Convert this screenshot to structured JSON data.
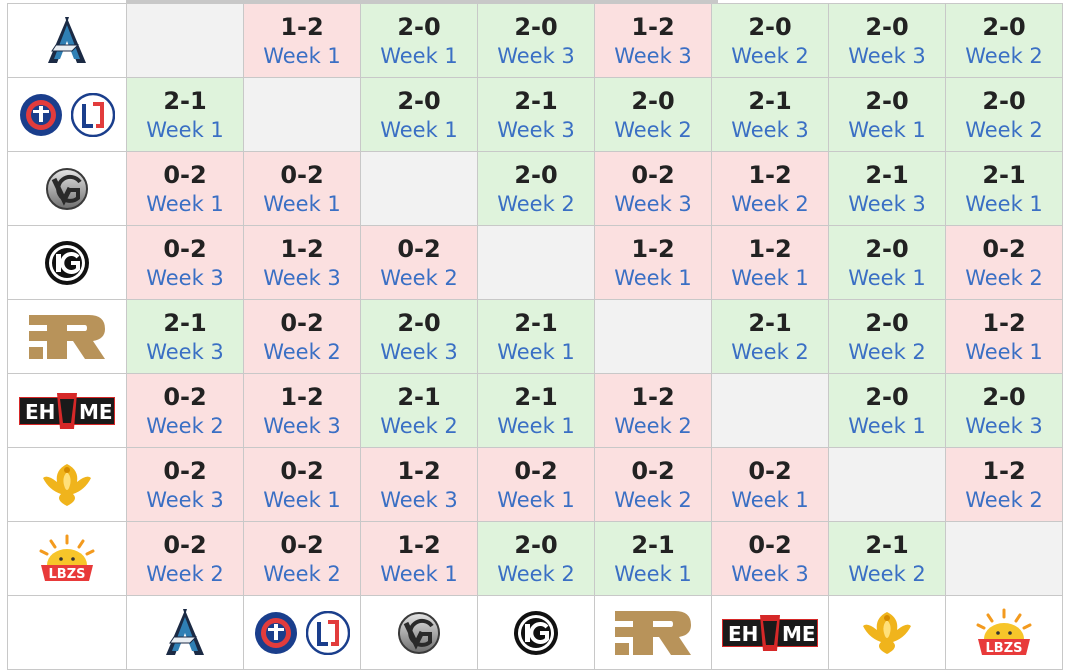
{
  "colors": {
    "win_bg": "#dff3dc",
    "loss_bg": "#fbe0e0",
    "self_bg": "#f2f2f2",
    "week_link": "#3a6fc4",
    "border": "#c8c8c8"
  },
  "teams": [
    {
      "id": "alliance",
      "logo_icon": "alliance-logo-icon"
    },
    {
      "id": "psg-lgd",
      "logo_icon": "psg-lgd-logo-icon"
    },
    {
      "id": "vici-gaming",
      "logo_icon": "vici-gaming-logo-icon"
    },
    {
      "id": "invictus-gaming",
      "logo_icon": "invictus-gaming-logo-icon"
    },
    {
      "id": "royal-never-give-up",
      "logo_icon": "rng-logo-icon"
    },
    {
      "id": "ehome",
      "logo_icon": "ehome-logo-icon"
    },
    {
      "id": "phoenix",
      "logo_icon": "phoenix-logo-icon"
    },
    {
      "id": "lbzs",
      "logo_icon": "lbzs-logo-icon"
    }
  ],
  "rows": [
    {
      "cells": [
        null,
        {
          "score": "1-2",
          "week": "Week 1"
        },
        {
          "score": "2-0",
          "week": "Week 1"
        },
        {
          "score": "2-0",
          "week": "Week 3"
        },
        {
          "score": "1-2",
          "week": "Week 3"
        },
        {
          "score": "2-0",
          "week": "Week 2"
        },
        {
          "score": "2-0",
          "week": "Week 3"
        },
        {
          "score": "2-0",
          "week": "Week 2"
        }
      ]
    },
    {
      "cells": [
        {
          "score": "2-1",
          "week": "Week 1"
        },
        null,
        {
          "score": "2-0",
          "week": "Week 1"
        },
        {
          "score": "2-1",
          "week": "Week 3"
        },
        {
          "score": "2-0",
          "week": "Week 2"
        },
        {
          "score": "2-1",
          "week": "Week 3"
        },
        {
          "score": "2-0",
          "week": "Week 1"
        },
        {
          "score": "2-0",
          "week": "Week 2"
        }
      ]
    },
    {
      "cells": [
        {
          "score": "0-2",
          "week": "Week 1"
        },
        {
          "score": "0-2",
          "week": "Week 1"
        },
        null,
        {
          "score": "2-0",
          "week": "Week 2"
        },
        {
          "score": "0-2",
          "week": "Week 3"
        },
        {
          "score": "1-2",
          "week": "Week 2"
        },
        {
          "score": "2-1",
          "week": "Week 3"
        },
        {
          "score": "2-1",
          "week": "Week 1"
        }
      ]
    },
    {
      "cells": [
        {
          "score": "0-2",
          "week": "Week 3"
        },
        {
          "score": "1-2",
          "week": "Week 3"
        },
        {
          "score": "0-2",
          "week": "Week 2"
        },
        null,
        {
          "score": "1-2",
          "week": "Week 1"
        },
        {
          "score": "1-2",
          "week": "Week 1"
        },
        {
          "score": "2-0",
          "week": "Week 1"
        },
        {
          "score": "0-2",
          "week": "Week 2"
        }
      ]
    },
    {
      "cells": [
        {
          "score": "2-1",
          "week": "Week 3"
        },
        {
          "score": "0-2",
          "week": "Week 2"
        },
        {
          "score": "2-0",
          "week": "Week 3"
        },
        {
          "score": "2-1",
          "week": "Week 1"
        },
        null,
        {
          "score": "2-1",
          "week": "Week 2"
        },
        {
          "score": "2-0",
          "week": "Week 2"
        },
        {
          "score": "1-2",
          "week": "Week 1"
        }
      ]
    },
    {
      "cells": [
        {
          "score": "0-2",
          "week": "Week 2"
        },
        {
          "score": "1-2",
          "week": "Week 3"
        },
        {
          "score": "2-1",
          "week": "Week 2"
        },
        {
          "score": "2-1",
          "week": "Week 1"
        },
        {
          "score": "1-2",
          "week": "Week 2"
        },
        null,
        {
          "score": "2-0",
          "week": "Week 1"
        },
        {
          "score": "2-0",
          "week": "Week 3"
        }
      ]
    },
    {
      "cells": [
        {
          "score": "0-2",
          "week": "Week 3"
        },
        {
          "score": "0-2",
          "week": "Week 1"
        },
        {
          "score": "1-2",
          "week": "Week 3"
        },
        {
          "score": "0-2",
          "week": "Week 1"
        },
        {
          "score": "0-2",
          "week": "Week 2"
        },
        {
          "score": "0-2",
          "week": "Week 1"
        },
        null,
        {
          "score": "1-2",
          "week": "Week 2"
        }
      ]
    },
    {
      "cells": [
        {
          "score": "0-2",
          "week": "Week 2"
        },
        {
          "score": "0-2",
          "week": "Week 2"
        },
        {
          "score": "1-2",
          "week": "Week 1"
        },
        {
          "score": "2-0",
          "week": "Week 2"
        },
        {
          "score": "2-1",
          "week": "Week 1"
        },
        {
          "score": "0-2",
          "week": "Week 3"
        },
        {
          "score": "2-1",
          "week": "Week 2"
        },
        null
      ]
    }
  ]
}
